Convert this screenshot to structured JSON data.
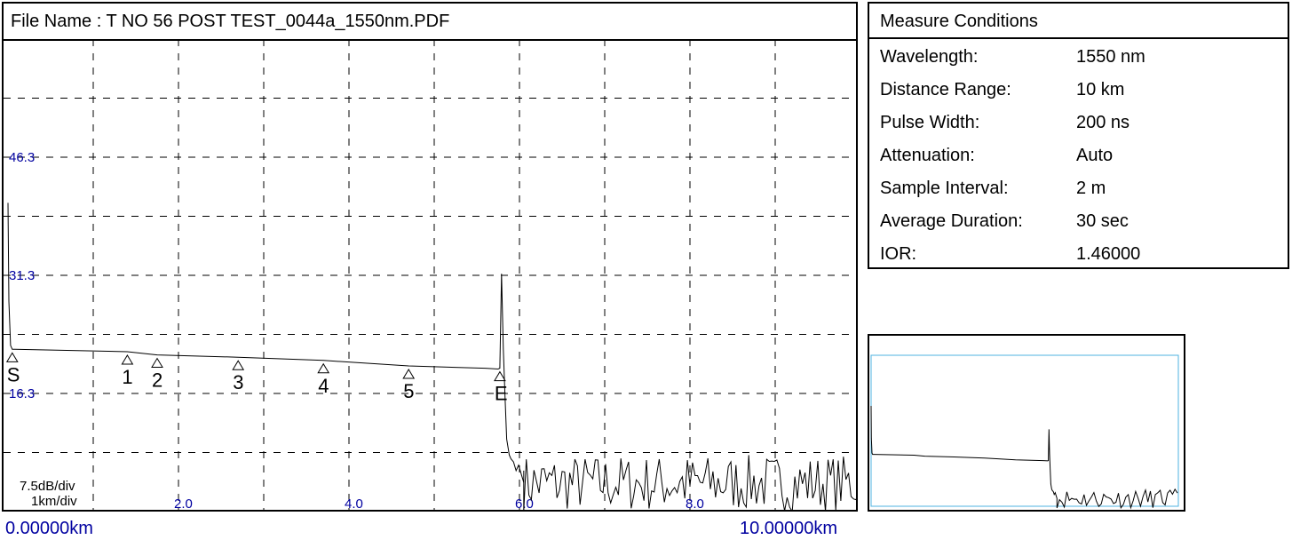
{
  "file_title": "File Name : T NO 56 POST TEST_0044a_1550nm.PDF",
  "range_start": "0.00000km",
  "range_end": "10.00000km",
  "conditions": {
    "title": "Measure Conditions",
    "rows": [
      {
        "label": "Wavelength:",
        "value": "1550 nm"
      },
      {
        "label": "Distance Range:",
        "value": "10 km"
      },
      {
        "label": "Pulse Width:",
        "value": "200 ns"
      },
      {
        "label": "Attenuation:",
        "value": "Auto"
      },
      {
        "label": "Sample Interval:",
        "value": "2 m"
      },
      {
        "label": "Average Duration:",
        "value": "30 sec"
      },
      {
        "label": "IOR:",
        "value": "1.46000"
      }
    ]
  },
  "colors": {
    "axis_text": "#0000a0",
    "trace": "#000000",
    "overview_box": "#4fb3e0"
  },
  "chart_data": {
    "type": "line",
    "title": "",
    "xlabel": "",
    "ylabel": "",
    "x_unit": "km",
    "xlim": [
      0,
      10
    ],
    "y_unit": "dB",
    "ylim": [
      1.3,
      61.3
    ],
    "grid": true,
    "y_scale_label": "7.5dB/div",
    "x_scale_label": "1km/div",
    "y_tick_labels": [
      {
        "value": 46.3,
        "label": "46.3"
      },
      {
        "value": 31.3,
        "label": "31.3"
      },
      {
        "value": 16.3,
        "label": "16.3"
      }
    ],
    "x_tick_labels": [
      {
        "value": 2,
        "label": "2.0"
      },
      {
        "value": 4,
        "label": "4.0"
      },
      {
        "value": 6,
        "label": "6.0"
      },
      {
        "value": 8,
        "label": "8.0"
      }
    ],
    "series": [
      {
        "x": [
          0,
          0.01,
          0.03,
          0.05,
          0.08,
          1.4,
          1.75,
          2.7,
          3.7,
          4.7,
          5.6,
          5.75,
          5.77,
          5.79,
          5.81,
          5.83,
          5.85,
          5.88,
          5.9,
          5.93,
          5.96,
          5.99,
          6.05
        ],
        "y": [
          40.5,
          28,
          22.4,
          21.9,
          21.9,
          21.6,
          21.2,
          20.9,
          20.5,
          19.8,
          19.5,
          19.4,
          19.5,
          31.5,
          22,
          16,
          10.5,
          8.5,
          8,
          7.6,
          6.5,
          7.2,
          5
        ]
      }
    ],
    "noise_floor": {
      "x_start": 6.05,
      "x_end": 10,
      "y_min": 1.3,
      "y_max": 8.5
    },
    "events": [
      {
        "label": "S",
        "x": 0.05,
        "y": 21.9
      },
      {
        "label": "1",
        "x": 1.4,
        "y": 21.6
      },
      {
        "label": "2",
        "x": 1.75,
        "y": 21.2
      },
      {
        "label": "3",
        "x": 2.7,
        "y": 20.9
      },
      {
        "label": "4",
        "x": 3.7,
        "y": 20.5
      },
      {
        "label": "5",
        "x": 4.7,
        "y": 19.8
      },
      {
        "label": "E",
        "x": 5.77,
        "y": 19.5
      }
    ]
  }
}
